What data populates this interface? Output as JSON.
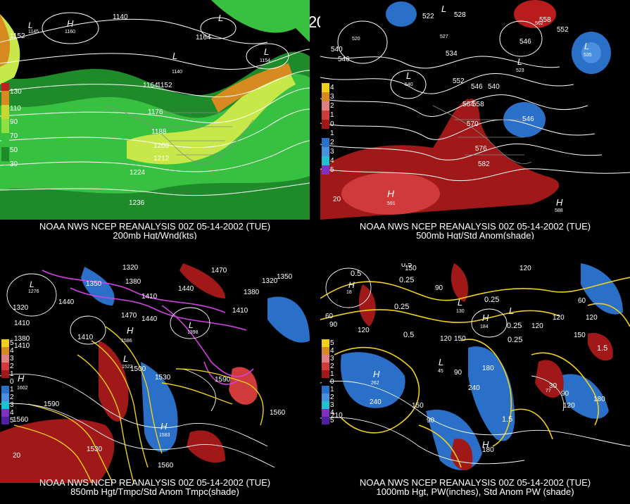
{
  "title": "00Z 05-14-2002 (TUE)",
  "panels": [
    {
      "caption_line1": "NOAA NWS NCEP REANALYSIS 00Z 05-14-2002 (TUE)",
      "caption_line2": "200mb Hgt/Wnd(kts)",
      "legend": [
        "130",
        "110",
        "90",
        "70",
        "50",
        "30"
      ],
      "contour_labels": [
        "1140",
        "1152",
        "1164",
        "1176",
        "1188",
        "1200",
        "1212",
        "1224",
        "1236",
        "1152",
        "1140"
      ],
      "pressure_centers": [
        "H",
        "L",
        "L"
      ],
      "center_values": [
        "1160",
        "1154",
        "1140",
        "1145"
      ]
    },
    {
      "caption_line1": "NOAA NWS NCEP REANALYSIS 00Z 05-14-2002 (TUE)",
      "caption_line2": "500mb Hgt/Std Anom(shade)",
      "legend": [
        "4",
        "3",
        "2",
        "1",
        "0",
        "1",
        "2",
        "3",
        "4",
        "5"
      ],
      "contour_labels": [
        "528",
        "540",
        "552",
        "564",
        "576",
        "588",
        "546",
        "558",
        "570",
        "582",
        "534",
        "522"
      ],
      "pressure_centers": [
        "L",
        "L",
        "L",
        "L",
        "H",
        "H"
      ],
      "center_values": [
        "591",
        "540",
        "535",
        "523",
        "527",
        "562",
        "520",
        "588"
      ]
    },
    {
      "caption_line1": "NOAA NWS NCEP REANALYSIS 00Z 05-14-2002 (TUE)",
      "caption_line2": "850mb Hgt/Tmpc/Std Anom Tmpc(shade)",
      "legend": [
        "5",
        "4",
        "3",
        "2",
        "1",
        "0",
        "1",
        "2",
        "3",
        "4",
        "5"
      ],
      "contour_labels": [
        "1320",
        "1380",
        "1410",
        "1440",
        "1470",
        "1350",
        "1500",
        "1530",
        "1560",
        "1590",
        "1290",
        "20"
      ],
      "pressure_centers": [
        "H",
        "L",
        "H",
        "L",
        "L",
        "H"
      ],
      "center_values": [
        "1602",
        "1586",
        "1522",
        "1276",
        "1398",
        "1583"
      ]
    },
    {
      "caption_line1": "NOAA NWS NCEP REANALYSIS 00Z 05-14-2002 (TUE)",
      "caption_line2": "1000mb Hgt, PW(inches), Std Anom PW (shade)",
      "legend": [
        "5",
        "4",
        "3",
        "2",
        "1",
        "0",
        "1",
        "2",
        "3",
        "4",
        "5"
      ],
      "contour_labels": [
        "0.5",
        "0.25",
        "1",
        "1.5",
        "60",
        "90",
        "120",
        "150",
        "180",
        "210",
        "240",
        "30"
      ],
      "pressure_centers": [
        "H",
        "L",
        "L",
        "H",
        "H",
        "L"
      ],
      "center_values": [
        "262",
        "184",
        "45",
        "77",
        "18",
        "130"
      ]
    }
  ],
  "colors": {
    "wind_light": "#c8e84a",
    "wind_mid": "#38c040",
    "wind_dark": "#1f8a2a",
    "wind_orange": "#d68a20",
    "anom_red": "#b81c1c",
    "anom_blue": "#2a6fc8",
    "temp_yellow": "#f0d018",
    "temp_magenta": "#d040e0"
  }
}
